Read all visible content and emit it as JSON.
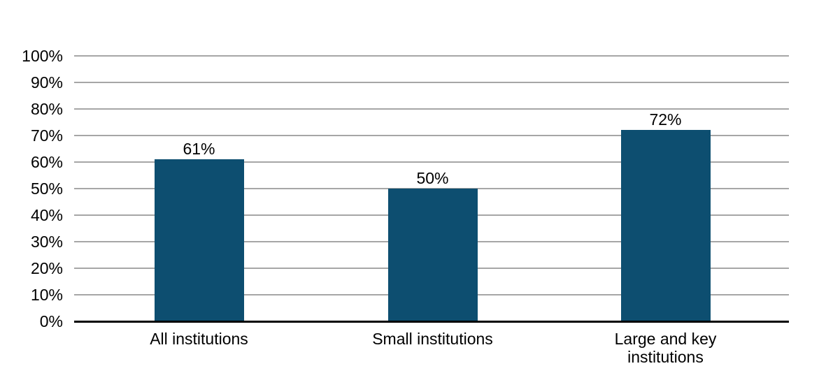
{
  "page": {
    "background": "#FFFFFF"
  },
  "chart_data": {
    "type": "bar",
    "title": "",
    "xlabel": "",
    "ylabel": "",
    "categories": [
      "All institutions",
      "Small institutions",
      "Large and key institutions"
    ],
    "values": [
      61,
      50,
      72
    ],
    "bars": [
      {
        "category": "All institutions",
        "category_lines": [
          "All institutions"
        ],
        "value": 61,
        "value_label": "61%"
      },
      {
        "category": "Small institutions",
        "category_lines": [
          "Small institutions"
        ],
        "value": 50,
        "value_label": "50%"
      },
      {
        "category": "Large and key institutions",
        "category_lines": [
          "Large and key",
          "institutions"
        ],
        "value": 72,
        "value_label": "72%"
      }
    ],
    "ylim": [
      0,
      100
    ],
    "ytick_interval": 10,
    "yticks": [
      {
        "value": 100,
        "label": "100%"
      },
      {
        "value": 90,
        "label": "90%"
      },
      {
        "value": 80,
        "label": "80%"
      },
      {
        "value": 70,
        "label": "70%"
      },
      {
        "value": 60,
        "label": "60%"
      },
      {
        "value": 50,
        "label": "50%"
      },
      {
        "value": 40,
        "label": "40%"
      },
      {
        "value": 30,
        "label": "30%"
      },
      {
        "value": 20,
        "label": "20%"
      },
      {
        "value": 10,
        "label": "10%"
      },
      {
        "value": 0,
        "label": "0%"
      }
    ],
    "grid": "horizontal",
    "legend": "none",
    "colors": {
      "bar": "#0D4E70",
      "gridline": "#A6A6A6",
      "axis_line": "#000000",
      "text": "#000000",
      "background": "#FFFFFF"
    }
  }
}
